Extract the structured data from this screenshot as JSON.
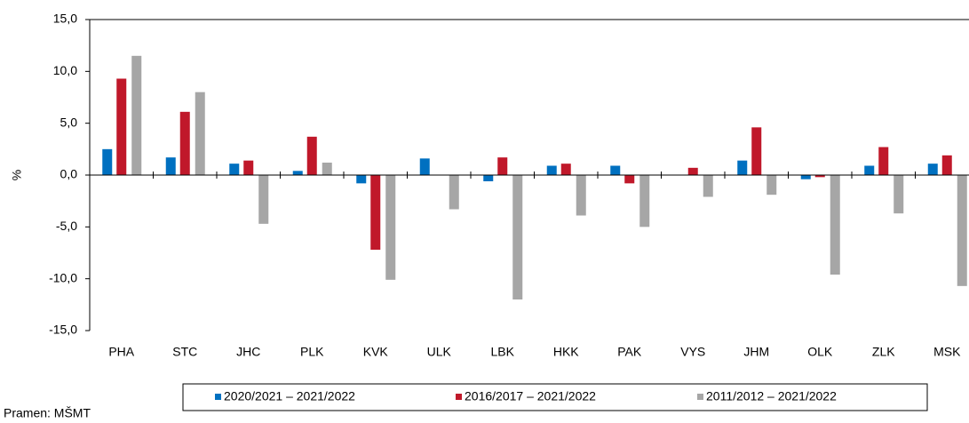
{
  "chart_data": {
    "type": "bar",
    "y_label": "%",
    "source": "Pramen: MŠMT",
    "categories": [
      "PHA",
      "STC",
      "JHC",
      "PLK",
      "KVK",
      "ULK",
      "LBK",
      "HKK",
      "PAK",
      "VYS",
      "JHM",
      "OLK",
      "ZLK",
      "MSK"
    ],
    "series": [
      {
        "name": "2020/2021 – 2021/2022",
        "color": "#0070c0",
        "values": [
          2.5,
          1.7,
          1.1,
          0.4,
          -0.8,
          1.6,
          -0.6,
          0.9,
          0.9,
          0.0,
          1.4,
          -0.4,
          0.9,
          1.1
        ]
      },
      {
        "name": "2016/2017 – 2021/2022",
        "color": "#c0182a",
        "values": [
          9.3,
          6.1,
          1.4,
          3.7,
          -7.2,
          0.0,
          1.7,
          1.1,
          -0.8,
          0.7,
          4.6,
          -0.2,
          2.7,
          1.9
        ]
      },
      {
        "name": "2011/2012 – 2021/2022",
        "color": "#a6a6a6",
        "values": [
          11.5,
          8.0,
          -4.7,
          1.2,
          -10.1,
          -3.3,
          -12.0,
          -3.9,
          -5.0,
          -2.1,
          -1.9,
          -9.6,
          -3.7,
          -10.7
        ]
      }
    ],
    "ylim": [
      -15,
      15
    ],
    "yticks": [
      {
        "value": -15,
        "label": "-15,0"
      },
      {
        "value": -10,
        "label": "-10,0"
      },
      {
        "value": -5,
        "label": "-5,0"
      },
      {
        "value": 0,
        "label": "0,0"
      },
      {
        "value": 5,
        "label": "5,0"
      },
      {
        "value": 10,
        "label": "10,0"
      },
      {
        "value": 15,
        "label": "15,0"
      }
    ],
    "grid": false,
    "legend": "bottom"
  }
}
